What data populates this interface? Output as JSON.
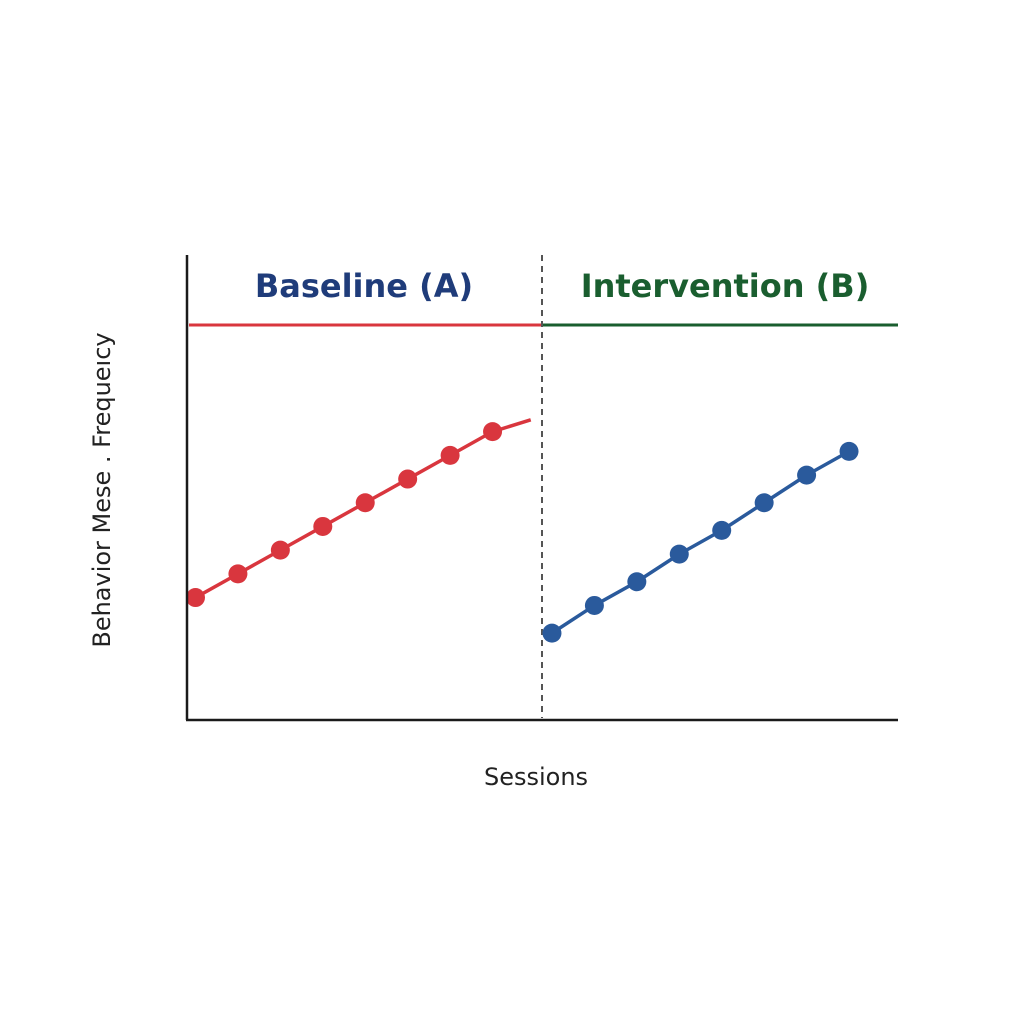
{
  "chart_data": {
    "type": "line",
    "title": "",
    "xlabel": "Sessions",
    "ylabel": "Behavior Mese . Frequeıcy",
    "phase_change_line": "dashed",
    "grid": false,
    "xlim": [
      0,
      16
    ],
    "ylim": [
      0,
      100
    ],
    "phases": [
      {
        "label": "Baseline (A)",
        "title_color": "#1f3c7a",
        "line_color": "#d9363e",
        "x_start": 0,
        "x_end": 8
      },
      {
        "label": "Intervention (B)",
        "title_color": "#1a5e2f",
        "line_color": "#1a5e2f",
        "x_start": 8,
        "x_end": 16
      }
    ],
    "series": [
      {
        "color": "#d9363e",
        "x": [
          0.2,
          1.2,
          2.2,
          3.2,
          4.2,
          5.2,
          6.2,
          7.2
        ],
        "y": [
          31,
          37,
          43,
          49,
          55,
          61,
          67,
          73
        ],
        "trend_end": {
          "x": 8.1,
          "y": 76
        }
      },
      {
        "color": "#2a5a9c",
        "x": [
          8.6,
          9.6,
          10.6,
          11.6,
          12.6,
          13.6,
          14.6,
          15.6
        ],
        "y": [
          22,
          29,
          35,
          42,
          48,
          55,
          62,
          68
        ]
      }
    ]
  }
}
